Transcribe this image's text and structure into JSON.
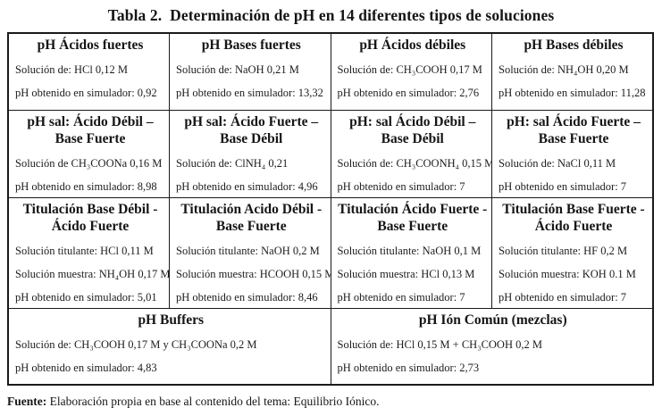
{
  "title": "Tabla 2.  Determinación de pH en 14 diferentes tipos de soluciones",
  "footer": {
    "label": "Fuente:",
    "text": " Elaboración propia en base al contenido del tema: Equilibrio Iónico."
  },
  "table": {
    "rows": [
      {
        "cells": [
          {
            "header": "pH Ácidos fuertes",
            "lines": [
              "Solución de: HCl 0,12 M",
              "pH obtenido en simulador: 0,92"
            ]
          },
          {
            "header": "pH Bases fuertes",
            "lines": [
              "Solución de: NaOH 0,21 M",
              "pH obtenido en simulador: 13,32"
            ]
          },
          {
            "header": "pH Ácidos débiles",
            "lines": [
              "Solución de: CH₃COOH 0,17 M",
              "pH obtenido en simulador: 2,76"
            ]
          },
          {
            "header": "pH Bases débiles",
            "lines": [
              "Solución de: NH₄OH 0,20 M",
              "pH obtenido en simulador: 11,28"
            ]
          }
        ]
      },
      {
        "cells": [
          {
            "header": "pH sal: Ácido Débil – Base Fuerte",
            "lines": [
              "Solución de CH₃COONa 0,16 M",
              "pH obtenido en simulador: 8,98"
            ]
          },
          {
            "header": "pH sal: Ácido Fuerte – Base Débil",
            "lines": [
              "Solución de: ClNH₄ 0,21",
              "pH obtenido en simulador: 4,96"
            ]
          },
          {
            "header": "pH: sal Ácido Débil – Base Débil",
            "lines": [
              "Solución de: CH₃COONH₄ 0,15 M",
              "pH obtenido en simulador: 7"
            ]
          },
          {
            "header": "pH: sal Ácido Fuerte – Base Fuerte",
            "lines": [
              "Solución de: NaCl 0,11 M",
              "pH obtenido en simulador: 7"
            ]
          }
        ]
      },
      {
        "cells": [
          {
            "header": "Titulación Base Débil - Ácido Fuerte",
            "lines": [
              "Solución titulante: HCl 0,11 M",
              "Solución muestra: NH₄OH 0,17 M",
              "pH obtenido en simulador: 5,01"
            ]
          },
          {
            "header": "Titulación Acido Débil - Base Fuerte",
            "lines": [
              "Solución titulante: NaOH 0,2 M",
              "Solución muestra: HCOOH 0,15 M",
              "pH obtenido en simulador: 8,46"
            ]
          },
          {
            "header": "Titulación Ácido Fuerte - Base Fuerte",
            "lines": [
              "Solución titulante: NaOH 0,1 M",
              "Solución muestra: HCl 0,13 M",
              "pH obtenido en simulador: 7"
            ]
          },
          {
            "header": "Titulación Base Fuerte - Ácido Fuerte",
            "lines": [
              "Solución titulante: HF 0,2 M",
              "Solución muestra: KOH 0.1 M",
              "pH obtenido en simulador: 7"
            ]
          }
        ]
      },
      {
        "cells": [
          {
            "header": "pH Buffers",
            "lines": [
              "Solución de: CH₃COOH 0,17 M y CH₃COONa 0,2 M",
              "pH obtenido en simulador: 4,83"
            ]
          },
          {
            "header": "pH Ión Común (mezclas)",
            "lines": [
              "Solución de: HCl 0,15 M + CH₃COOH 0,2 M",
              "pH obtenido en simulador: 2,73"
            ]
          }
        ]
      }
    ]
  }
}
